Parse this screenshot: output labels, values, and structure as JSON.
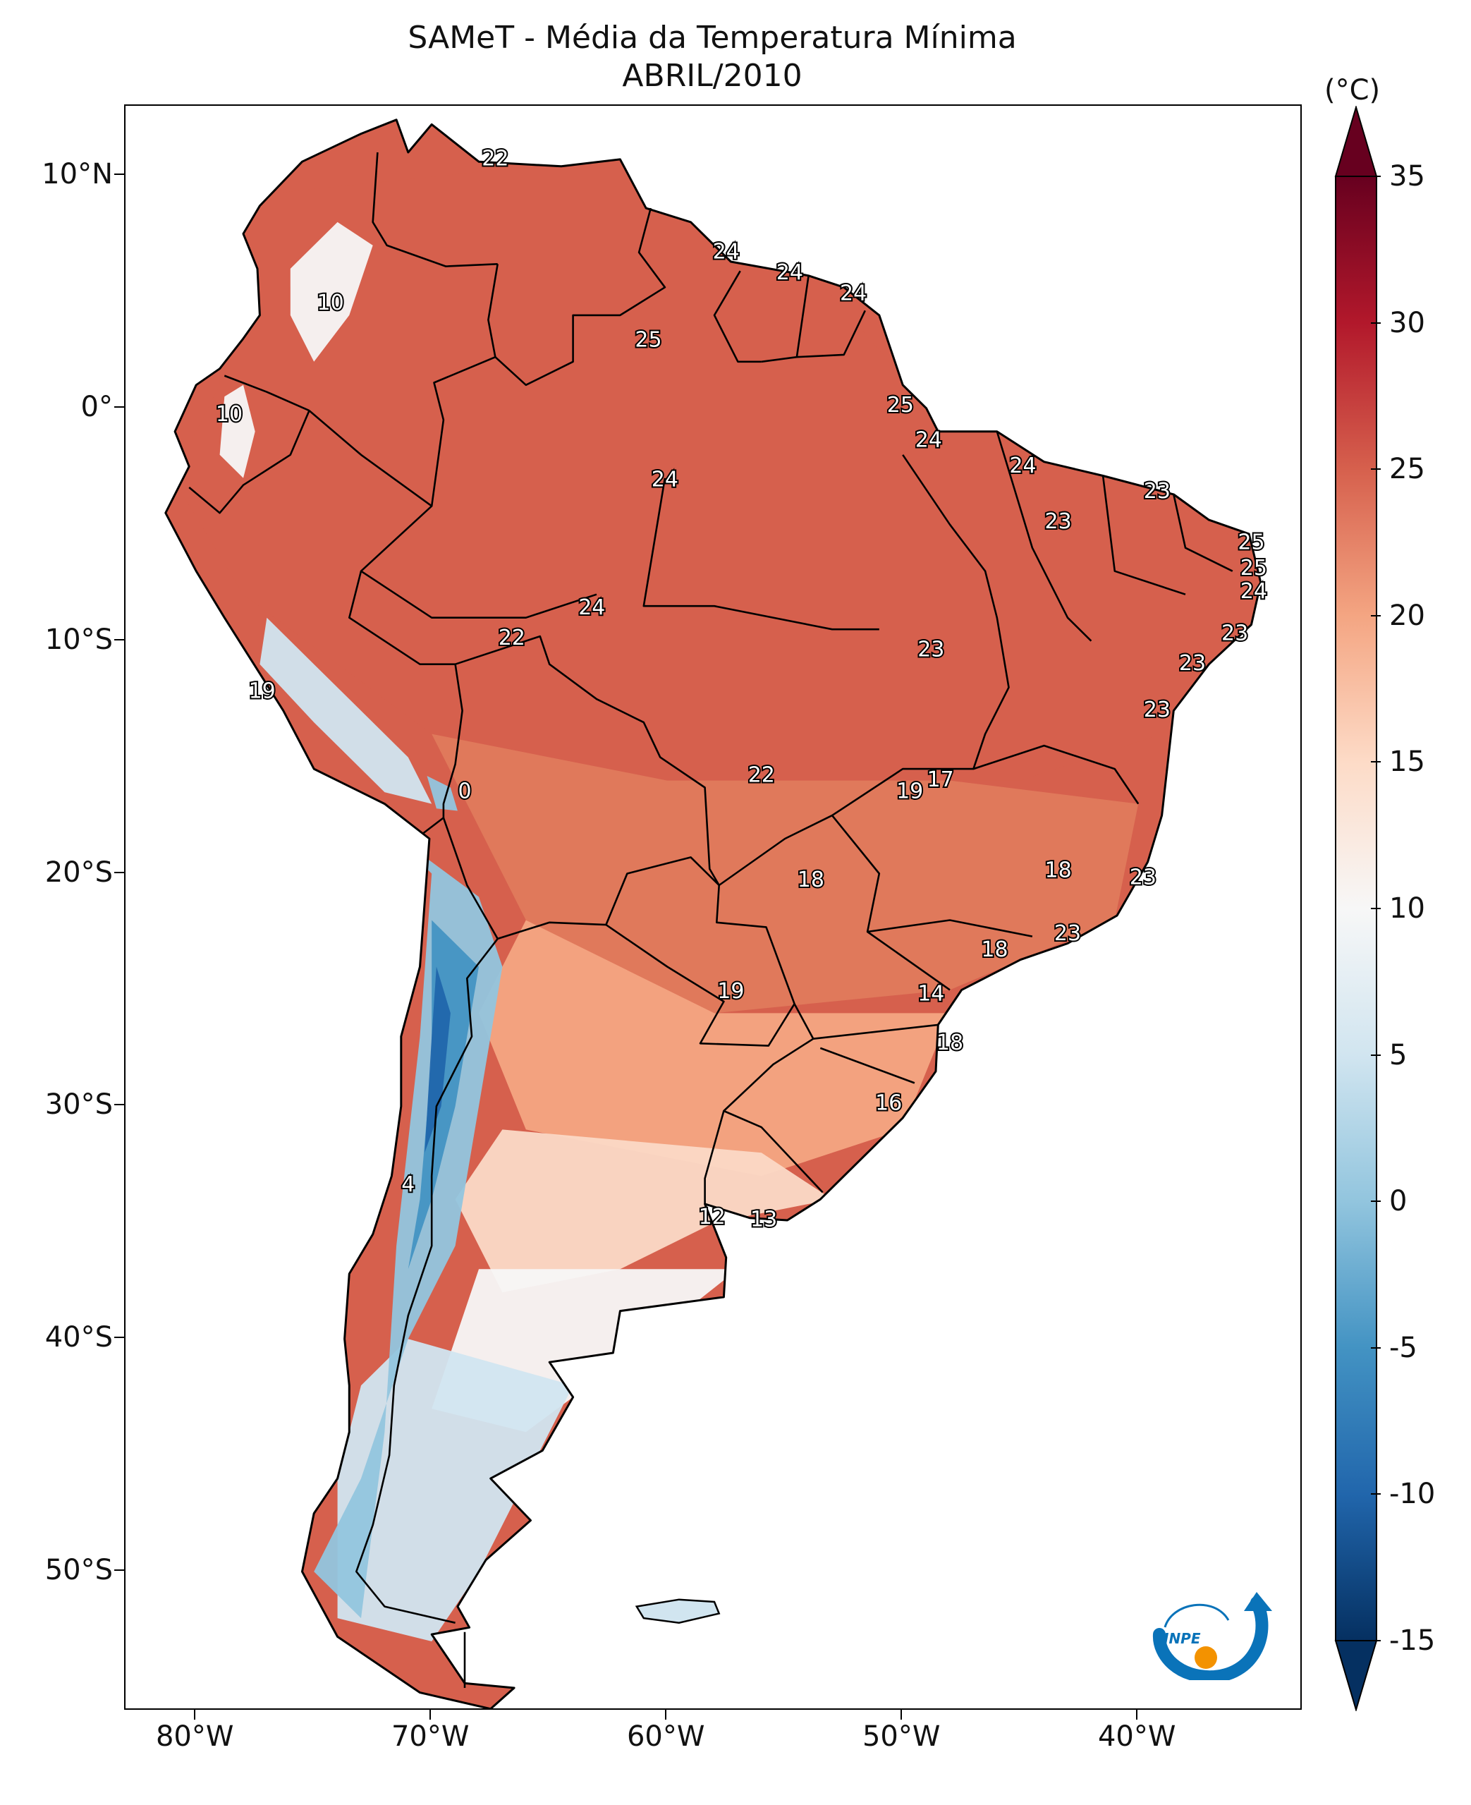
{
  "title": {
    "line1": "SAMeT - Média da Temperatura Mínima",
    "line2": "ABRIL/2010"
  },
  "map": {
    "lon_range": [
      -83,
      -33
    ],
    "lat_range": [
      -56,
      13
    ],
    "lat_ticks": [
      {
        "lat": 10,
        "label": "10°N"
      },
      {
        "lat": 0,
        "label": "0°"
      },
      {
        "lat": -10,
        "label": "10°S"
      },
      {
        "lat": -20,
        "label": "20°S"
      },
      {
        "lat": -30,
        "label": "30°S"
      },
      {
        "lat": -40,
        "label": "40°S"
      },
      {
        "lat": -50,
        "label": "50°S"
      }
    ],
    "lon_ticks": [
      {
        "lon": -80,
        "label": "80°W"
      },
      {
        "lon": -70,
        "label": "70°W"
      },
      {
        "lon": -60,
        "label": "60°W"
      },
      {
        "lon": -50,
        "label": "50°W"
      },
      {
        "lon": -40,
        "label": "40°W"
      }
    ],
    "value_labels": [
      {
        "text": "22",
        "lon": -67.3,
        "lat": 10.7
      },
      {
        "text": "24",
        "lon": -57.5,
        "lat": 6.7
      },
      {
        "text": "24",
        "lon": -54.8,
        "lat": 5.8
      },
      {
        "text": "24",
        "lon": -52.1,
        "lat": 4.9
      },
      {
        "text": "10",
        "lon": -74.3,
        "lat": 4.5
      },
      {
        "text": "25",
        "lon": -60.8,
        "lat": 2.9
      },
      {
        "text": "25",
        "lon": -50.1,
        "lat": 0.1
      },
      {
        "text": "10",
        "lon": -78.6,
        "lat": -0.3
      },
      {
        "text": "24",
        "lon": -48.9,
        "lat": -1.4
      },
      {
        "text": "24",
        "lon": -44.9,
        "lat": -2.5
      },
      {
        "text": "24",
        "lon": -60.1,
        "lat": -3.1
      },
      {
        "text": "23",
        "lon": -39.2,
        "lat": -3.6
      },
      {
        "text": "23",
        "lon": -43.4,
        "lat": -4.9
      },
      {
        "text": "25",
        "lon": -35.2,
        "lat": -5.8
      },
      {
        "text": "25",
        "lon": -35.1,
        "lat": -6.9
      },
      {
        "text": "24",
        "lon": -35.1,
        "lat": -7.9
      },
      {
        "text": "24",
        "lon": -63.2,
        "lat": -8.6
      },
      {
        "text": "23",
        "lon": -35.9,
        "lat": -9.7
      },
      {
        "text": "22",
        "lon": -66.6,
        "lat": -9.9
      },
      {
        "text": "23",
        "lon": -48.8,
        "lat": -10.4
      },
      {
        "text": "23",
        "lon": -37.7,
        "lat": -11.0
      },
      {
        "text": "19",
        "lon": -77.2,
        "lat": -12.2
      },
      {
        "text": "23",
        "lon": -39.2,
        "lat": -13.0
      },
      {
        "text": "22",
        "lon": -56.0,
        "lat": -15.8
      },
      {
        "text": "17",
        "lon": -48.4,
        "lat": -16.0
      },
      {
        "text": "0",
        "lon": -68.6,
        "lat": -16.5
      },
      {
        "text": "19",
        "lon": -49.7,
        "lat": -16.5
      },
      {
        "text": "18",
        "lon": -43.4,
        "lat": -19.9
      },
      {
        "text": "23",
        "lon": -39.8,
        "lat": -20.2
      },
      {
        "text": "18",
        "lon": -53.9,
        "lat": -20.3
      },
      {
        "text": "23",
        "lon": -43.0,
        "lat": -22.6
      },
      {
        "text": "18",
        "lon": -46.1,
        "lat": -23.3
      },
      {
        "text": "19",
        "lon": -57.3,
        "lat": -25.1
      },
      {
        "text": "14",
        "lon": -48.8,
        "lat": -25.2
      },
      {
        "text": "18",
        "lon": -48.0,
        "lat": -27.3
      },
      {
        "text": "16",
        "lon": -50.6,
        "lat": -29.9
      },
      {
        "text": "4",
        "lon": -71.0,
        "lat": -33.4
      },
      {
        "text": "12",
        "lon": -58.1,
        "lat": -34.8
      },
      {
        "text": "13",
        "lon": -55.9,
        "lat": -34.9
      }
    ],
    "land_fill_colors": [
      "#d6604d",
      "#e07a5c",
      "#f4a582",
      "#fbd9c6",
      "#f7f7f7",
      "#d1e5f0",
      "#92c5de",
      "#4393c3",
      "#2166ac"
    ]
  },
  "colorbar": {
    "unit": "(°C)",
    "min": -15,
    "max": 35,
    "ticks": [
      "35",
      "30",
      "25",
      "20",
      "15",
      "10",
      "5",
      "0",
      "-5",
      "-10",
      "-15"
    ],
    "tick_values": [
      35,
      30,
      25,
      20,
      15,
      10,
      5,
      0,
      -5,
      -10,
      -15
    ],
    "colors": [
      "#053061",
      "#2166ac",
      "#4393c3",
      "#92c5de",
      "#d1e5f0",
      "#f7f7f7",
      "#fddbc7",
      "#f4a582",
      "#d6604d",
      "#b2182b",
      "#67001f"
    ],
    "extend": "both"
  },
  "logo": {
    "text": "INPE",
    "colors": [
      "#0a73b9",
      "#f39200"
    ]
  }
}
